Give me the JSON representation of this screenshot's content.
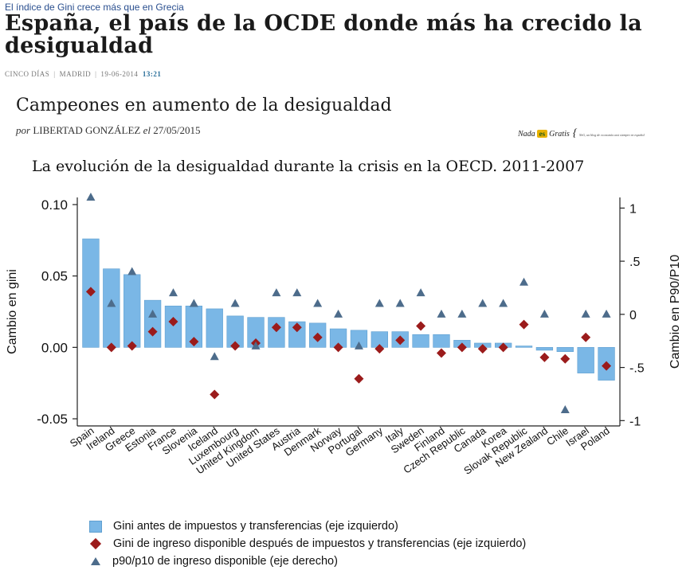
{
  "article": {
    "kicker": "El índice de Gini crece más que en Grecia",
    "headline": "España, el país de la OCDE donde más ha crecido la desigualdad",
    "source": "CINCO DÍAS",
    "location": "MADRID",
    "date": "19-06-2014",
    "time": "13:21"
  },
  "post": {
    "title": "Campeones en aumento de la desigualdad",
    "by_prefix": "por",
    "author": "LIBERTAD GONZÁLEZ",
    "date_prefix": "el",
    "date": "27/05/2015"
  },
  "brand": {
    "left": "Nada",
    "badge": "es",
    "right": "Gratis",
    "tagline": "NeG, un blog de economía casi siempre en español"
  },
  "colors": {
    "bar": "#7ab7e6",
    "bar_edge": "#5f9fd0",
    "diamond": "#9b1b1b",
    "triangle": "#4d6c8b"
  },
  "chart_data": {
    "type": "bar",
    "title": "La evolución de la desigualdad durante la crisis en la OECD. 2011-2007",
    "ylabel": "Cambio en gini",
    "ylabel_right": "Cambio en P90/P10",
    "ylim": [
      -0.055,
      0.105
    ],
    "ylim_right": [
      -1.05,
      1.1
    ],
    "yticks": [
      "0.10",
      "0.05",
      "0.00",
      "-0.05"
    ],
    "yticks_values": [
      0.1,
      0.05,
      0.0,
      -0.05
    ],
    "yticks_right": [
      "1",
      ".5",
      "0",
      "-.5",
      "-1"
    ],
    "yticks_right_values": [
      1,
      0.5,
      0,
      -0.5,
      -1
    ],
    "grid": false,
    "legend_position": "bottom",
    "categories": [
      "Spain",
      "Ireland",
      "Greece",
      "Estonia",
      "France",
      "Slovenia",
      "Iceland",
      "Luxembourg",
      "United Kingdom",
      "United States",
      "Austria",
      "Denmark",
      "Norway",
      "Portugal",
      "Germany",
      "Italy",
      "Sweden",
      "Finland",
      "Czech Republic",
      "Canada",
      "Korea",
      "Slovak Republic",
      "New Zealand",
      "Chile",
      "Israel",
      "Poland"
    ],
    "series": [
      {
        "name": "Gini antes de impuestos y transferencias (eje izquierdo)",
        "kind": "bar",
        "axis": "left",
        "values": [
          0.076,
          0.055,
          0.051,
          0.033,
          0.029,
          0.029,
          0.027,
          0.022,
          0.021,
          0.021,
          0.018,
          0.017,
          0.013,
          0.012,
          0.011,
          0.011,
          0.009,
          0.009,
          0.005,
          0.003,
          0.003,
          0.001,
          -0.002,
          -0.003,
          -0.018,
          -0.023
        ]
      },
      {
        "name": "Gini de ingreso disponible después de impuestos y transferencias (eje izquierdo)",
        "kind": "diamond",
        "axis": "left",
        "values": [
          0.039,
          0.0,
          0.001,
          0.011,
          0.018,
          0.004,
          -0.033,
          0.001,
          0.003,
          0.014,
          0.014,
          0.007,
          0.0,
          -0.022,
          -0.001,
          0.005,
          0.015,
          -0.004,
          0.0,
          -0.001,
          0.0,
          0.016,
          -0.007,
          -0.008,
          0.007,
          -0.013
        ]
      },
      {
        "name": "p90/p10  de ingreso disponible (eje derecho)",
        "kind": "triangle",
        "axis": "right",
        "values": [
          1.1,
          0.1,
          0.4,
          0.0,
          0.2,
          0.1,
          -0.4,
          0.1,
          -0.3,
          0.2,
          0.2,
          0.1,
          0.0,
          -0.3,
          0.1,
          0.1,
          0.2,
          0.0,
          0.0,
          0.1,
          0.1,
          0.3,
          0.0,
          -0.9,
          0.0,
          0.0
        ]
      }
    ]
  }
}
